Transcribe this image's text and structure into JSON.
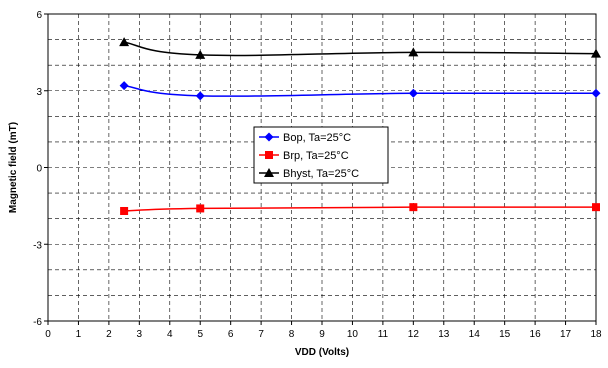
{
  "chart_data": {
    "type": "line",
    "title": "",
    "xlabel": "VDD (Volts)",
    "ylabel": "Magnetic field (mT)",
    "xlim": [
      0,
      18
    ],
    "ylim": [
      -6,
      6
    ],
    "xticks": [
      0,
      1,
      2,
      3,
      4,
      5,
      6,
      7,
      8,
      9,
      10,
      11,
      12,
      13,
      14,
      15,
      16,
      17,
      18
    ],
    "yticks": [
      -6,
      -3,
      0,
      3,
      6
    ],
    "grid": true,
    "legend_position": "center",
    "series": [
      {
        "name": "Bop, Ta=25°C",
        "color": "#0000ff",
        "marker": "diamond",
        "x": [
          2.5,
          5,
          12,
          18
        ],
        "y": [
          3.2,
          2.8,
          2.9,
          2.9
        ]
      },
      {
        "name": "Brp, Ta=25°C",
        "color": "#ff0000",
        "marker": "square",
        "x": [
          2.5,
          5,
          12,
          18
        ],
        "y": [
          -1.7,
          -1.6,
          -1.55,
          -1.55
        ]
      },
      {
        "name": "Bhyst, Ta=25°C",
        "color": "#000000",
        "marker": "triangle",
        "x": [
          2.5,
          5,
          12,
          18
        ],
        "y": [
          4.9,
          4.4,
          4.5,
          4.45
        ]
      }
    ]
  }
}
